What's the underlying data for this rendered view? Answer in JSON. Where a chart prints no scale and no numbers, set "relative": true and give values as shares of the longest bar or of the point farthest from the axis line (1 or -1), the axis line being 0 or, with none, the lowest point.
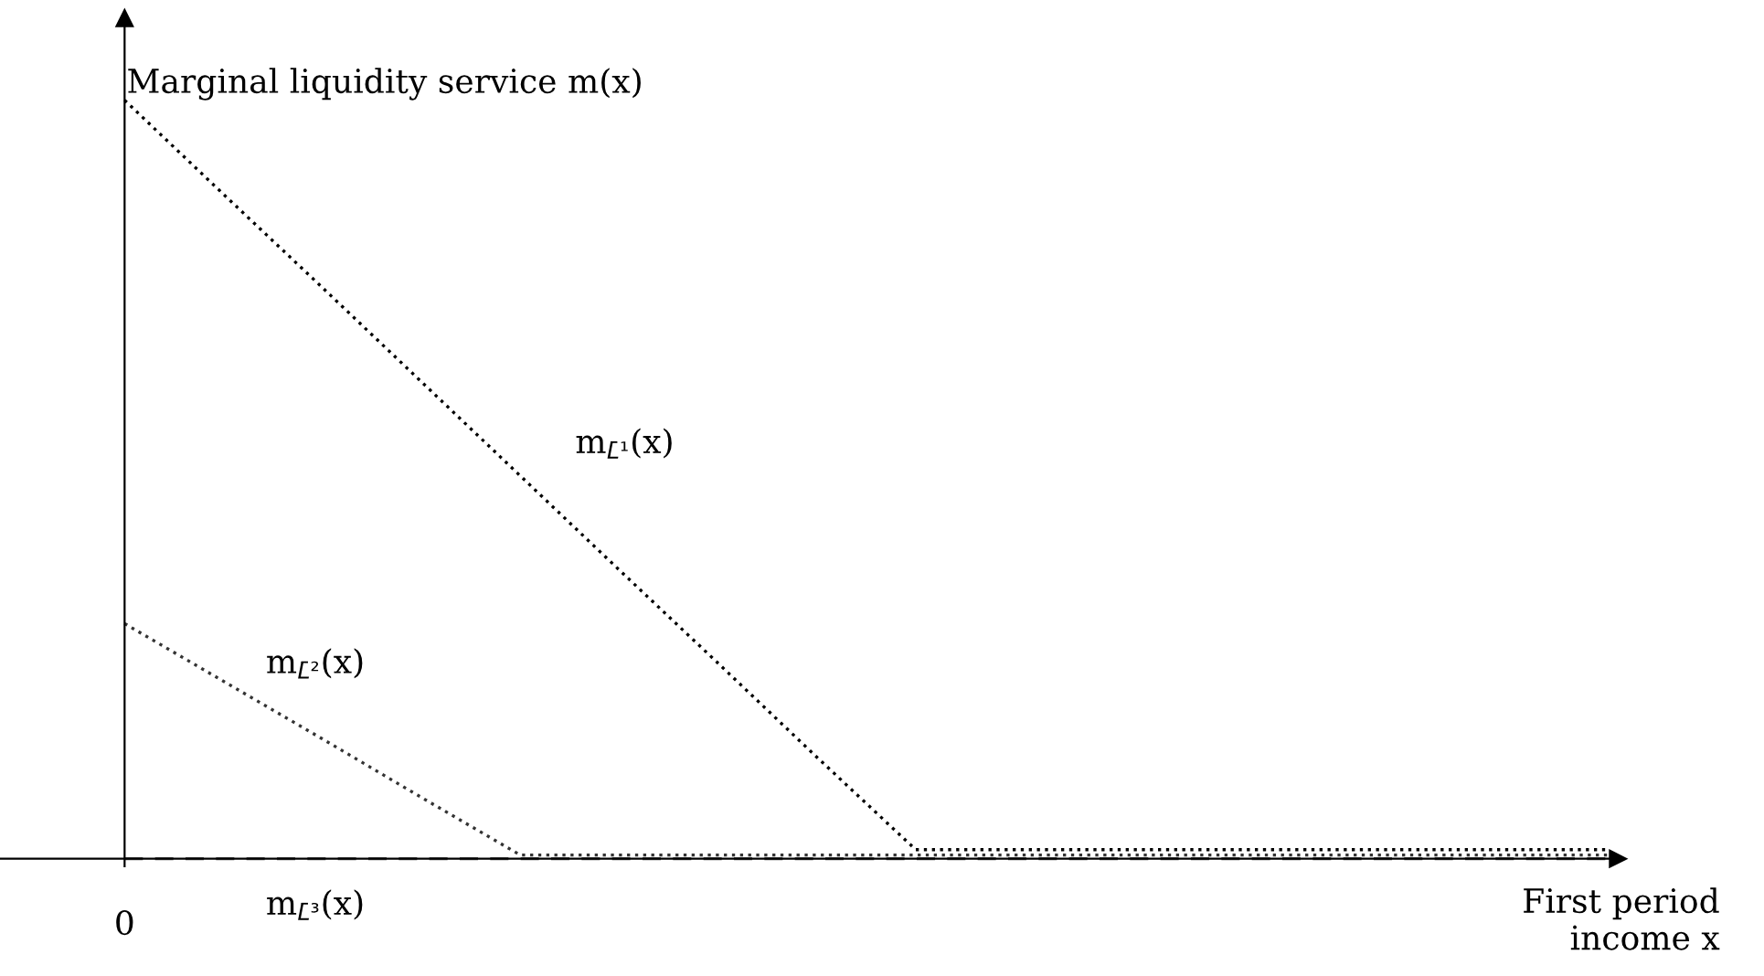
{
  "chart_data": {
    "type": "line",
    "relative": true,
    "ylabel": "Marginal liquidity service m(x)",
    "xlabel": "First period\nincome x",
    "annotations": [
      "0"
    ],
    "categories": [
      null,
      null,
      null,
      null,
      null,
      null,
      null,
      null,
      null,
      null,
      null,
      null,
      null,
      null,
      null,
      null
    ],
    "series": [
      {
        "name": "m$_{L̄¹}$(x)",
        "color": "#000000",
        "line_style": "dotted",
        "values": [
          1,
          0.876,
          0.753,
          0.629,
          0.505,
          0.381,
          0.258,
          0.134,
          0.012,
          0.012,
          0.012,
          0.012,
          0.012,
          0.012,
          0.012,
          0.012
        ]
      },
      {
        "name": "m$_{L̄²}$(x)",
        "color": "#333333",
        "line_style": "dotted",
        "values": [
          0.31,
          0.234,
          0.158,
          0.081,
          0.005,
          0.005,
          0.005,
          0.005,
          0.005,
          0.005,
          0.005,
          0.005,
          0.005,
          0.005,
          0.005,
          0.005
        ]
      },
      {
        "name": "m$_{L̄³}$(x)",
        "color": "#555555",
        "line_style": "dashed",
        "values": [
          0,
          0,
          0,
          0,
          0,
          0,
          0,
          0,
          0,
          0,
          0,
          0,
          0,
          0,
          0,
          0
        ]
      }
    ],
    "legend": false
  }
}
